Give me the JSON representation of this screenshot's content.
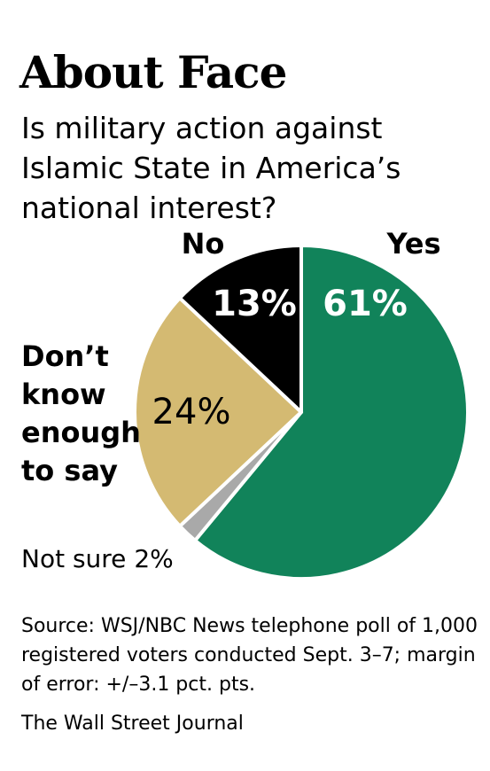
{
  "title": "About Face",
  "subtitle": "Is military action against Islamic State in America’s national interest?",
  "chart_data": {
    "type": "pie",
    "slices": [
      {
        "label": "Yes",
        "value": 61,
        "value_label": "61%",
        "color": "#11835a"
      },
      {
        "label": "Not sure",
        "value": 2,
        "value_label": "2%",
        "color": "#a9a9a9"
      },
      {
        "label_lines": [
          "Don’t",
          "know",
          "enough",
          "to say"
        ],
        "value": 24,
        "value_label": "24%",
        "color": "#d4ba72"
      },
      {
        "label": "No",
        "value": 13,
        "value_label": "13%",
        "color": "#000000"
      }
    ],
    "not_sure_label": "Not sure 2%"
  },
  "footnote": "Source: WSJ/NBC News telephone poll of 1,000 registered voters conducted Sept. 3–7; margin of error: +/–3.1 pct. pts.",
  "credit": "The Wall Street Journal"
}
